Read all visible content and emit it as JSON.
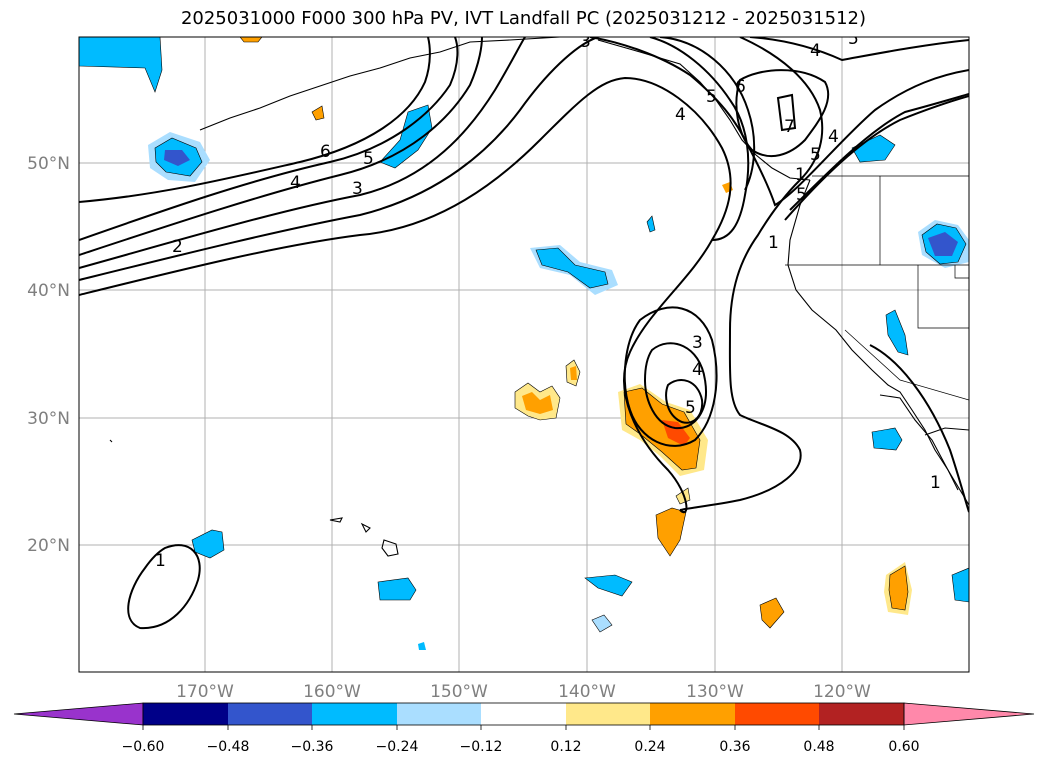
{
  "title": "2025031000 F000 300 hPa PV, IVT Landfall PC (2025031212 - 2025031512)",
  "map": {
    "lat_labels": [
      "50°N",
      "40°N",
      "30°N",
      "20°N"
    ],
    "lon_labels": [
      "170°W",
      "160°W",
      "150°W",
      "140°W",
      "130°W",
      "120°W"
    ]
  },
  "colorbar": {
    "colors": [
      "#9933cc",
      "#000088",
      "#3355cc",
      "#00bbff",
      "#aadeff",
      "#ffffff",
      "#ffe88a",
      "#ffa000",
      "#ff4a00",
      "#b22222",
      "#ff88aa"
    ],
    "tick_labels": [
      "−0.60",
      "−0.48",
      "−0.36",
      "−0.24",
      "−0.12",
      "0.12",
      "0.24",
      "0.36",
      "0.48",
      "0.60"
    ]
  },
  "contour_labels": [
    "1",
    "2",
    "3",
    "4",
    "5",
    "6",
    "5",
    "4",
    "3",
    "5",
    "4",
    "6",
    "7",
    "5",
    "4",
    "1",
    "3",
    "4",
    "5",
    "1",
    "1",
    "5"
  ]
}
